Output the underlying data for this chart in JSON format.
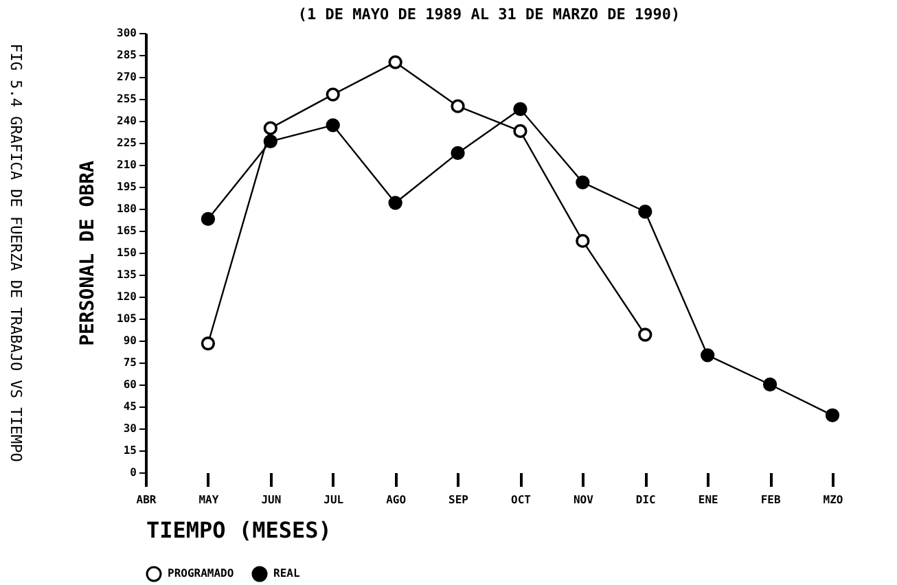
{
  "chart_data": {
    "type": "line",
    "title": "(1 DE MAYO DE 1989 AL 31 DE MARZO DE 1990)",
    "xlabel": "TIEMPO (MESES)",
    "ylabel": "PERSONAL DE OBRA",
    "annotations": [
      "FIG 5.4 GRAFICA DE FUERZA DE TRABAJO VS TIEMPO"
    ],
    "categories": [
      "ABR",
      "MAY",
      "JUN",
      "JUL",
      "AGO",
      "SEP",
      "OCT",
      "NOV",
      "DIC",
      "ENE",
      "FEB",
      "MZO"
    ],
    "series": [
      {
        "name": "PROGRAMADO",
        "color": "#ffffff",
        "values": [
          null,
          88,
          235,
          258,
          280,
          250,
          233,
          158,
          94,
          null,
          null,
          null
        ]
      },
      {
        "name": "REAL",
        "color": "#000000",
        "values": [
          null,
          173,
          226,
          237,
          184,
          218,
          248,
          198,
          178,
          80,
          60,
          39
        ]
      }
    ],
    "ylim": [
      0,
      300
    ],
    "yticks": [
      0,
      15,
      30,
      45,
      60,
      75,
      90,
      105,
      120,
      135,
      150,
      165,
      180,
      195,
      210,
      225,
      240,
      255,
      270,
      285,
      300
    ],
    "grid": false,
    "legend": "bottom",
    "marker": "circle",
    "line_style": "solid"
  }
}
